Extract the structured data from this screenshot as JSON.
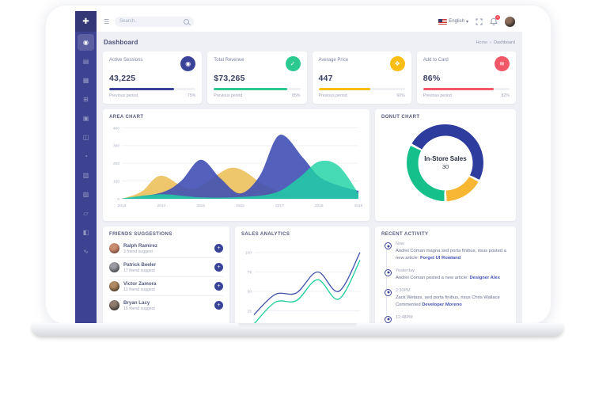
{
  "topbar": {
    "search_placeholder": "Search..",
    "language": "English",
    "caret": "▾",
    "bell_badge": "3"
  },
  "page": {
    "title": "Dashboard",
    "breadcrumb_home": "Home",
    "breadcrumb_sep": "›",
    "breadcrumb_current": "Dashboard"
  },
  "sidebar": {
    "logo_glyph": "✚",
    "items": [
      {
        "name": "dashboard",
        "glyph": "◉"
      },
      {
        "name": "projects",
        "glyph": "▤"
      },
      {
        "name": "apps",
        "glyph": "▦"
      },
      {
        "name": "widgets",
        "glyph": "⊞"
      },
      {
        "name": "pages",
        "glyph": "▣"
      },
      {
        "name": "layouts",
        "glyph": "◫"
      },
      {
        "name": "history",
        "glyph": "◔"
      },
      {
        "name": "tables",
        "glyph": "▥"
      },
      {
        "name": "charts",
        "glyph": "▨"
      },
      {
        "name": "maps",
        "glyph": "▱"
      },
      {
        "name": "docs",
        "glyph": "◧"
      },
      {
        "name": "share",
        "glyph": "∿"
      }
    ]
  },
  "stat_cards": [
    {
      "title": "Active Sessions",
      "value": "43,225",
      "prev_label": "Previous period",
      "pct_label": "75%",
      "progress": 75,
      "color": "#3b4399",
      "icon": "disc-icon",
      "glyph": "◉"
    },
    {
      "title": "Total Revenue",
      "value": "$73,265",
      "prev_label": "Previous period",
      "pct_label": "85%",
      "progress": 85,
      "color": "#2bc990",
      "icon": "check-icon",
      "glyph": "✓"
    },
    {
      "title": "Average Price",
      "value": "447",
      "prev_label": "Previous period",
      "pct_label": "60%",
      "progress": 60,
      "color": "#f9bd13",
      "icon": "tag-icon",
      "glyph": "❖"
    },
    {
      "title": "Add to Card",
      "value": "86%",
      "prev_label": "Previous period",
      "pct_label": "82%",
      "progress": 82,
      "color": "#f25767",
      "icon": "stack-icon",
      "glyph": "≋"
    }
  ],
  "chart_data": [
    {
      "type": "area",
      "title": "AREA CHART",
      "x_ticks": [
        2013,
        2014,
        2015,
        2016,
        2017,
        2018,
        2019
      ],
      "y_ticks": [
        0,
        100,
        200,
        300,
        400
      ],
      "ylim": [
        0,
        420
      ],
      "grid": true,
      "legend_position": "none",
      "series": [
        {
          "name": "yellow",
          "color": "#edc363",
          "opacity": 0.95,
          "points": [
            [
              2013,
              0
            ],
            [
              2013.5,
              40
            ],
            [
              2014,
              130
            ],
            [
              2014.8,
              55
            ],
            [
              2015.8,
              175
            ],
            [
              2016.6,
              80
            ],
            [
              2017.2,
              25
            ],
            [
              2017.8,
              2
            ],
            [
              2019,
              0
            ]
          ]
        },
        {
          "name": "blue",
          "color": "#4050b5",
          "opacity": 0.9,
          "points": [
            [
              2013,
              0
            ],
            [
              2014,
              35
            ],
            [
              2014.5,
              100
            ],
            [
              2015,
              220
            ],
            [
              2015.5,
              115
            ],
            [
              2016,
              30
            ],
            [
              2016.5,
              130
            ],
            [
              2017,
              360
            ],
            [
              2017.6,
              230
            ],
            [
              2018,
              125
            ],
            [
              2018.5,
              75
            ],
            [
              2019,
              45
            ]
          ]
        },
        {
          "name": "green",
          "color": "#1ed3a5",
          "opacity": 0.82,
          "points": [
            [
              2013,
              2
            ],
            [
              2013.7,
              22
            ],
            [
              2014.2,
              24
            ],
            [
              2015,
              8
            ],
            [
              2016,
              10
            ],
            [
              2016.9,
              35
            ],
            [
              2017.5,
              120
            ],
            [
              2018,
              210
            ],
            [
              2018.5,
              185
            ],
            [
              2019,
              30
            ]
          ]
        }
      ]
    },
    {
      "type": "pie",
      "title": "DONUT CHART",
      "center_label": "In-Store Sales",
      "center_value": "30",
      "start_angle_deg": 300,
      "segments": [
        {
          "label": "blue",
          "color": "#2e3c9e",
          "pct": 50
        },
        {
          "label": "yellow",
          "color": "#f7b733",
          "pct": 17
        },
        {
          "label": "green",
          "color": "#15c08b",
          "pct": 33
        }
      ]
    },
    {
      "type": "line",
      "title": "SALES ANALYTICS",
      "y_ticks": [
        25,
        50,
        75,
        100
      ],
      "ylim": [
        0,
        110
      ],
      "x": [
        0,
        1,
        2,
        3,
        4,
        5
      ],
      "grid": true,
      "series": [
        {
          "name": "blue",
          "color": "#3f51a8",
          "values": [
            20,
            46,
            48,
            75,
            50,
            100
          ]
        },
        {
          "name": "green",
          "color": "#1fcf9c",
          "values": [
            8,
            36,
            38,
            65,
            40,
            90
          ]
        }
      ]
    }
  ],
  "friends": {
    "title": "FRIENDS SUGGESTIONS",
    "add_glyph": "+",
    "items": [
      {
        "name": "Ralph Ramirez",
        "sub": "3 friend suggest"
      },
      {
        "name": "Patrick Beeler",
        "sub": "17 friend suggest"
      },
      {
        "name": "Victor Zamora",
        "sub": "12 friend suggest"
      },
      {
        "name": "Bryan Lacy",
        "sub": "16 friend suggest"
      }
    ]
  },
  "activity": {
    "title": "RECENT ACTIVITY",
    "items": [
      {
        "time": "Now",
        "text": "Andrei Coman magna sed porta finibus, risus posted a new article:",
        "link": "Forget UI Rowland"
      },
      {
        "time": "Yesterday",
        "text": "Andrei Coman posted a new article:",
        "link": "Designer Alex"
      },
      {
        "time": "2:30PM",
        "text": "Zack Wetass, sed porta finibus, risus Chris Wallace Commented",
        "link": "Developer Moreno"
      },
      {
        "time": "12:48PM",
        "text": "",
        "link": ""
      }
    ]
  }
}
